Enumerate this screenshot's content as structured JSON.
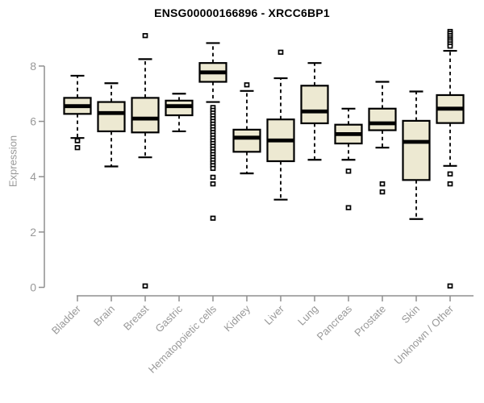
{
  "chart_data": {
    "type": "boxplot",
    "title": "ENSG00000166896 - XRCC6BP1",
    "ylabel": "Expression",
    "yticks": [
      0,
      2,
      4,
      6,
      8
    ],
    "ylim": [
      0,
      9.4
    ],
    "grid": false,
    "legend": "none",
    "box_fill_color": "#EDE9D2",
    "box_border_color": "#000000",
    "axis_text_color": "#999999",
    "axis_line_color": "#8f8f8f",
    "categories": [
      "Bladder",
      "Brain",
      "Breast",
      "Gastric",
      "Hematopoietic cells",
      "Kidney",
      "Liver",
      "Lung",
      "Pancreas",
      "Prostate",
      "Skin",
      "Unknown / Other"
    ],
    "series": [
      {
        "name": "Bladder",
        "low": 5.4,
        "q1": 6.27,
        "median": 6.55,
        "q3": 6.85,
        "high": 7.65,
        "outliers": [
          5.3,
          5.05
        ]
      },
      {
        "name": "Brain",
        "low": 4.37,
        "q1": 5.64,
        "median": 6.3,
        "q3": 6.7,
        "high": 7.38,
        "outliers": []
      },
      {
        "name": "Breast",
        "low": 4.7,
        "q1": 5.6,
        "median": 6.1,
        "q3": 6.85,
        "high": 8.25,
        "outliers": [
          9.1,
          0.05
        ]
      },
      {
        "name": "Gastric",
        "low": 5.64,
        "q1": 6.22,
        "median": 6.55,
        "q3": 6.75,
        "high": 7.0,
        "outliers": []
      },
      {
        "name": "Hematopoietic cells",
        "low": 6.7,
        "q1": 7.43,
        "median": 7.77,
        "q3": 8.11,
        "high": 8.83,
        "outliers": [
          6.5,
          6.4,
          6.3,
          6.2,
          6.1,
          6.0,
          5.9,
          5.8,
          5.7,
          5.6,
          5.5,
          5.4,
          5.3,
          5.2,
          5.1,
          5.0,
          4.9,
          4.8,
          4.7,
          4.6,
          4.5,
          4.4,
          4.3,
          3.98,
          3.74,
          2.5
        ]
      },
      {
        "name": "Kidney",
        "low": 4.12,
        "q1": 4.9,
        "median": 5.41,
        "q3": 5.7,
        "high": 7.1,
        "outliers": [
          7.32
        ]
      },
      {
        "name": "Liver",
        "low": 3.17,
        "q1": 4.56,
        "median": 5.31,
        "q3": 6.07,
        "high": 7.56,
        "outliers": [
          8.5
        ]
      },
      {
        "name": "Lung",
        "low": 4.61,
        "q1": 5.93,
        "median": 6.36,
        "q3": 7.29,
        "high": 8.11,
        "outliers": []
      },
      {
        "name": "Pancreas",
        "low": 4.61,
        "q1": 5.2,
        "median": 5.54,
        "q3": 5.88,
        "high": 6.46,
        "outliers": [
          4.2,
          2.88
        ]
      },
      {
        "name": "Prostate",
        "low": 5.05,
        "q1": 5.68,
        "median": 5.93,
        "q3": 6.46,
        "high": 7.43,
        "outliers": [
          3.74,
          3.45
        ]
      },
      {
        "name": "Skin",
        "low": 2.47,
        "q1": 3.88,
        "median": 5.26,
        "q3": 6.02,
        "high": 7.08,
        "outliers": []
      },
      {
        "name": "Unknown / Other",
        "low": 4.39,
        "q1": 5.94,
        "median": 6.46,
        "q3": 6.95,
        "high": 8.55,
        "outliers": [
          9.25,
          9.18,
          9.1,
          9.02,
          8.95,
          8.88,
          8.8,
          8.72,
          4.1,
          3.74,
          0.05
        ]
      }
    ]
  }
}
